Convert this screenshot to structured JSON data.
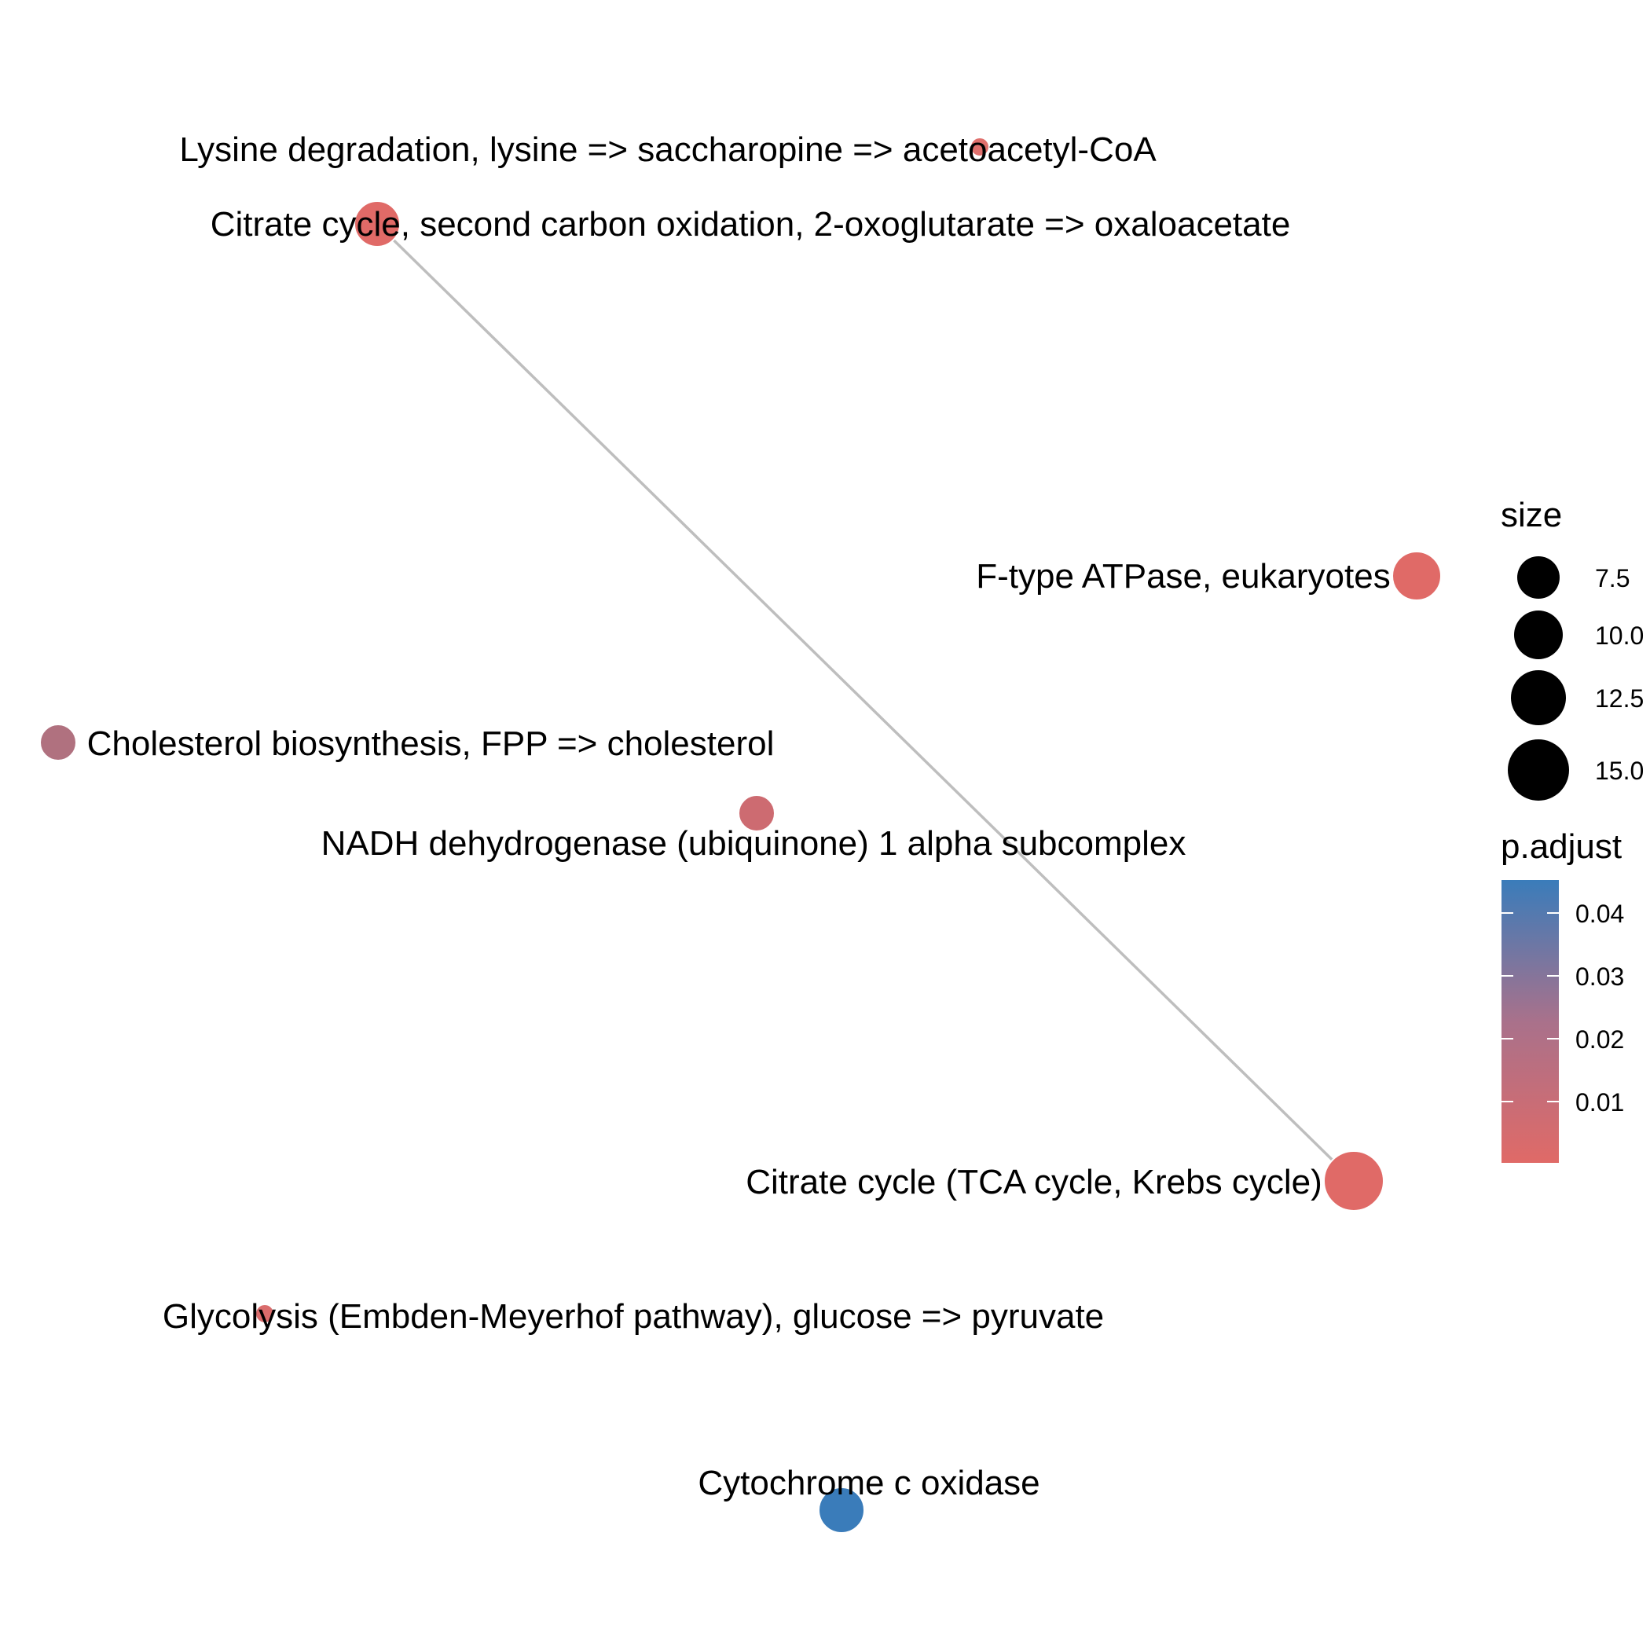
{
  "nodes": [
    {
      "name": "Lysine degradation, lysine => saccharopine => acetoacetyl-CoA",
      "size": 2,
      "p_adjust": 0.002,
      "color": "#E0706D"
    },
    {
      "name": "Citrate cycle, second carbon oxidation, 2-oxoglutarate => oxaloacetate",
      "size": 8,
      "p_adjust": 0.001,
      "color": "#E06A67"
    },
    {
      "name": "F-type ATPase, eukaryotes",
      "size": 9,
      "p_adjust": 0.001,
      "color": "#E06A67"
    },
    {
      "name": "Cholesterol biosynthesis, FPP => cholesterol",
      "size": 6,
      "p_adjust": 0.018,
      "color": "#B0717F"
    },
    {
      "name": "NADH dehydrogenase (ubiquinone) 1 alpha subcomplex",
      "size": 6,
      "p_adjust": 0.006,
      "color": "#CD6B71"
    },
    {
      "name": "Citrate cycle (TCA cycle, Krebs cycle)",
      "size": 15,
      "p_adjust": 0.001,
      "color": "#E06A67"
    },
    {
      "name": "Glycolysis (Embden-Meyerhof pathway), glucose => pyruvate",
      "size": 2,
      "p_adjust": 0.003,
      "color": "#DA6C6C"
    },
    {
      "name": "Cytochrome c oxidase",
      "size": 8,
      "p_adjust": 0.046,
      "color": "#3A7CBA"
    }
  ],
  "edges": [
    {
      "from": "Citrate cycle, second carbon oxidation, 2-oxoglutarate => oxaloacetate",
      "to": "Citrate cycle (TCA cycle, Krebs cycle)"
    }
  ],
  "legend": {
    "size_title": "size",
    "size_items": [
      {
        "label": "7.5",
        "value": 7.5
      },
      {
        "label": "10.0",
        "value": 10.0
      },
      {
        "label": "12.5",
        "value": 12.5
      },
      {
        "label": "15.0",
        "value": 15.0
      }
    ],
    "color_title": "p.adjust",
    "color_ticks": [
      {
        "label": "0.04",
        "value": 0.04
      },
      {
        "label": "0.03",
        "value": 0.03
      },
      {
        "label": "0.02",
        "value": 0.02
      },
      {
        "label": "0.01",
        "value": 0.01
      }
    ],
    "color_range": [
      0.0,
      0.046
    ],
    "color_low": "#E06A67",
    "color_high": "#3A7CBA"
  },
  "colors": {
    "edge": "#BEBEBE",
    "background": "#FFFFFF",
    "node_outline": "#FFFFFF"
  }
}
